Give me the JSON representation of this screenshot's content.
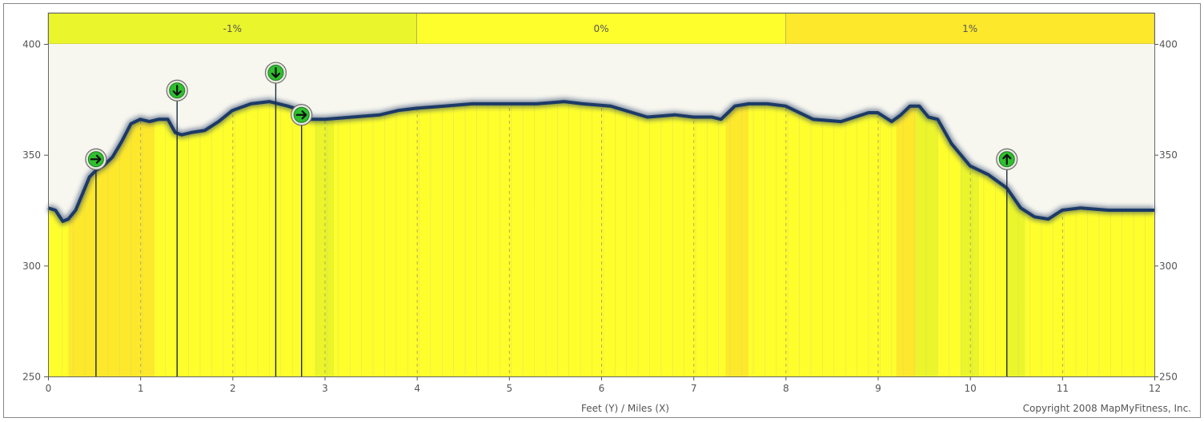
{
  "chart_data": {
    "type": "area",
    "title": "",
    "xlabel": "Feet (Y) / Miles (X)",
    "ylabel": "",
    "xlim": [
      0,
      12
    ],
    "ylim": [
      250,
      400
    ],
    "x_ticks": [
      0,
      1,
      2,
      3,
      4,
      5,
      6,
      7,
      8,
      9,
      10,
      11,
      12
    ],
    "y_ticks": [
      250,
      300,
      350,
      400
    ],
    "grid": "vertical dashed at each mile",
    "copyright": "Copyright 2008 MapMyFitness, Inc.",
    "grade_legend": [
      {
        "label": "-1%",
        "color": "#eaf52b"
      },
      {
        "label": "0%",
        "color": "#fefe2c"
      },
      {
        "label": "1%",
        "color": "#fde82c"
      }
    ],
    "elevation": {
      "x": [
        0,
        0.08,
        0.16,
        0.22,
        0.3,
        0.38,
        0.45,
        0.52,
        0.6,
        0.7,
        0.8,
        0.9,
        1.0,
        1.1,
        1.2,
        1.3,
        1.38,
        1.45,
        1.55,
        1.7,
        1.85,
        2.0,
        2.2,
        2.4,
        2.6,
        2.75,
        2.85,
        3.0,
        3.3,
        3.6,
        3.8,
        4.0,
        4.3,
        4.6,
        5.0,
        5.3,
        5.6,
        5.8,
        6.1,
        6.5,
        6.8,
        7.0,
        7.2,
        7.3,
        7.45,
        7.6,
        7.8,
        8.0,
        8.3,
        8.6,
        8.9,
        9.0,
        9.15,
        9.25,
        9.35,
        9.45,
        9.55,
        9.65,
        9.8,
        10.0,
        10.2,
        10.4,
        10.55,
        10.7,
        10.85,
        11.0,
        11.2,
        11.5,
        11.8,
        12.0
      ],
      "y": [
        326,
        325,
        320,
        321,
        325,
        333,
        340,
        343,
        345,
        349,
        356,
        364,
        366,
        365,
        366,
        366,
        360,
        359,
        360,
        361,
        365,
        370,
        373,
        374,
        372,
        370,
        366,
        366,
        367,
        368,
        370,
        371,
        372,
        373,
        373,
        373,
        374,
        373,
        372,
        367,
        368,
        367,
        367,
        366,
        372,
        373,
        373,
        372,
        366,
        365,
        369,
        369,
        365,
        368,
        372,
        372,
        367,
        366,
        355,
        345,
        341,
        335,
        326,
        322,
        321,
        325,
        326,
        325,
        325,
        325
      ]
    },
    "grade_bands": [
      {
        "from": 0.0,
        "to": 0.22,
        "color": "#fefe2c"
      },
      {
        "from": 0.22,
        "to": 1.15,
        "color": "#fde82c"
      },
      {
        "from": 1.15,
        "to": 2.9,
        "color": "#fefe2c"
      },
      {
        "from": 2.9,
        "to": 3.1,
        "color": "#eaf52b"
      },
      {
        "from": 3.1,
        "to": 7.35,
        "color": "#fefe2c"
      },
      {
        "from": 7.35,
        "to": 7.6,
        "color": "#fde82c"
      },
      {
        "from": 7.6,
        "to": 9.2,
        "color": "#fefe2c"
      },
      {
        "from": 9.2,
        "to": 9.42,
        "color": "#fde82c"
      },
      {
        "from": 9.42,
        "to": 9.65,
        "color": "#eaf52b"
      },
      {
        "from": 9.65,
        "to": 9.9,
        "color": "#fefe2c"
      },
      {
        "from": 9.9,
        "to": 10.1,
        "color": "#eaf52b"
      },
      {
        "from": 10.1,
        "to": 10.4,
        "color": "#fefe2c"
      },
      {
        "from": 10.4,
        "to": 10.6,
        "color": "#eaf52b"
      },
      {
        "from": 10.6,
        "to": 12.0,
        "color": "#fefe2c"
      }
    ],
    "turn_markers": [
      {
        "x": 0.52,
        "direction": "right",
        "label_y": 348
      },
      {
        "x": 1.4,
        "direction": "down",
        "label_y": 379
      },
      {
        "x": 2.47,
        "direction": "down",
        "label_y": 387
      },
      {
        "x": 2.75,
        "direction": "right",
        "label_y": 368
      },
      {
        "x": 10.4,
        "direction": "up",
        "label_y": 348
      }
    ]
  }
}
